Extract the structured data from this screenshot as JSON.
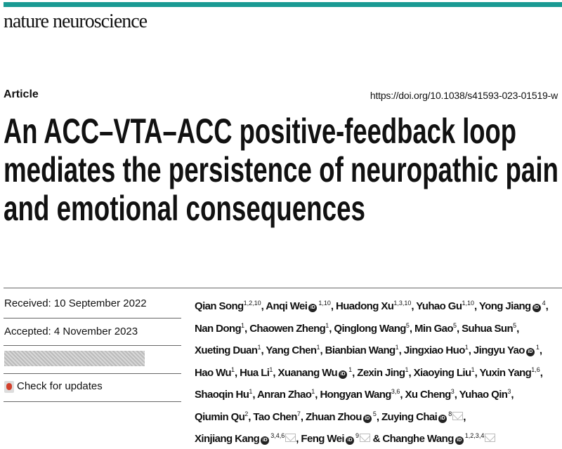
{
  "brand_color": "#1a9a93",
  "journal": "nature neuroscience",
  "article_type": "Article",
  "doi": "https://doi.org/10.1038/s41593-023-01519-w",
  "title_lines": [
    "An ACC–VTA–ACC positive-feedback loop",
    "mediates the persistence of neuropathic pain",
    "and emotional consequences"
  ],
  "received": "Received: 10 September 2022",
  "accepted": "Accepted: 4 November 2023",
  "check_updates": "Check for updates",
  "orcid_label": "iD",
  "author_lines": [
    [
      {
        "name": "Qian Song",
        "sup": "1,2,10",
        "sep": ", "
      },
      {
        "name": "Anqi Wei",
        "orcid": true,
        "sup": "1,10",
        "sep": ", "
      },
      {
        "name": "Huadong Xu",
        "sup": "1,3,10",
        "sep": ", "
      },
      {
        "name": "Yuhao Gu",
        "sup": "1,10",
        "sep": ", "
      },
      {
        "name": "Yong Jiang",
        "orcid": true,
        "sup": "4",
        "sep": ","
      }
    ],
    [
      {
        "name": "Nan Dong",
        "sup": "1",
        "sep": ", "
      },
      {
        "name": "Chaowen Zheng",
        "sup": "1",
        "sep": ", "
      },
      {
        "name": "Qinglong Wang",
        "sup": "5",
        "sep": ", "
      },
      {
        "name": "Min Gao",
        "sup": "5",
        "sep": ", "
      },
      {
        "name": "Suhua Sun",
        "sup": "5",
        "sep": ","
      }
    ],
    [
      {
        "name": "Xueting Duan",
        "sup": "1",
        "sep": ", "
      },
      {
        "name": "Yang Chen",
        "sup": "1",
        "sep": ", "
      },
      {
        "name": "Bianbian Wang",
        "sup": "1",
        "sep": ", "
      },
      {
        "name": "Jingxiao Huo",
        "sup": "1",
        "sep": ", "
      },
      {
        "name": "Jingyu Yao",
        "orcid": true,
        "sup": "1",
        "sep": ","
      }
    ],
    [
      {
        "name": "Hao Wu",
        "sup": "1",
        "sep": ", "
      },
      {
        "name": "Hua Li",
        "sup": "1",
        "sep": ", "
      },
      {
        "name": "Xuanang Wu",
        "orcid": true,
        "sup": "1",
        "sep": ", "
      },
      {
        "name": "Zexin Jing",
        "sup": "1",
        "sep": ", "
      },
      {
        "name": "Xiaoying Liu",
        "sup": "1",
        "sep": ", "
      },
      {
        "name": "Yuxin Yang",
        "sup": "1,6",
        "sep": ","
      }
    ],
    [
      {
        "name": "Shaoqin Hu",
        "sup": "1",
        "sep": ", "
      },
      {
        "name": "Anran Zhao",
        "sup": "1",
        "sep": ", "
      },
      {
        "name": "Hongyan Wang",
        "sup": "3,6",
        "sep": ", "
      },
      {
        "name": "Xu Cheng",
        "sup": "3",
        "sep": ", "
      },
      {
        "name": "Yuhao Qin",
        "sup": "3",
        "sep": ","
      }
    ],
    [
      {
        "name": "Qiumin Qu",
        "sup": "2",
        "sep": ", "
      },
      {
        "name": "Tao Chen",
        "sup": "7",
        "sep": ", "
      },
      {
        "name": "Zhuan Zhou",
        "orcid": true,
        "sup": "5",
        "sep": ", "
      },
      {
        "name": "Zuying Chai",
        "orcid": true,
        "sup": "8",
        "email": true,
        "sep": ","
      }
    ],
    [
      {
        "name": "Xinjiang Kang",
        "orcid": true,
        "sup": "3,4,6",
        "email": true,
        "sep": ", "
      },
      {
        "name": "Feng Wei",
        "orcid": true,
        "sup": "9",
        "email": true,
        "sep": " & "
      },
      {
        "name": "Changhe Wang",
        "orcid": true,
        "sup": "1,2,3,4",
        "email": true,
        "sep": ""
      }
    ]
  ]
}
